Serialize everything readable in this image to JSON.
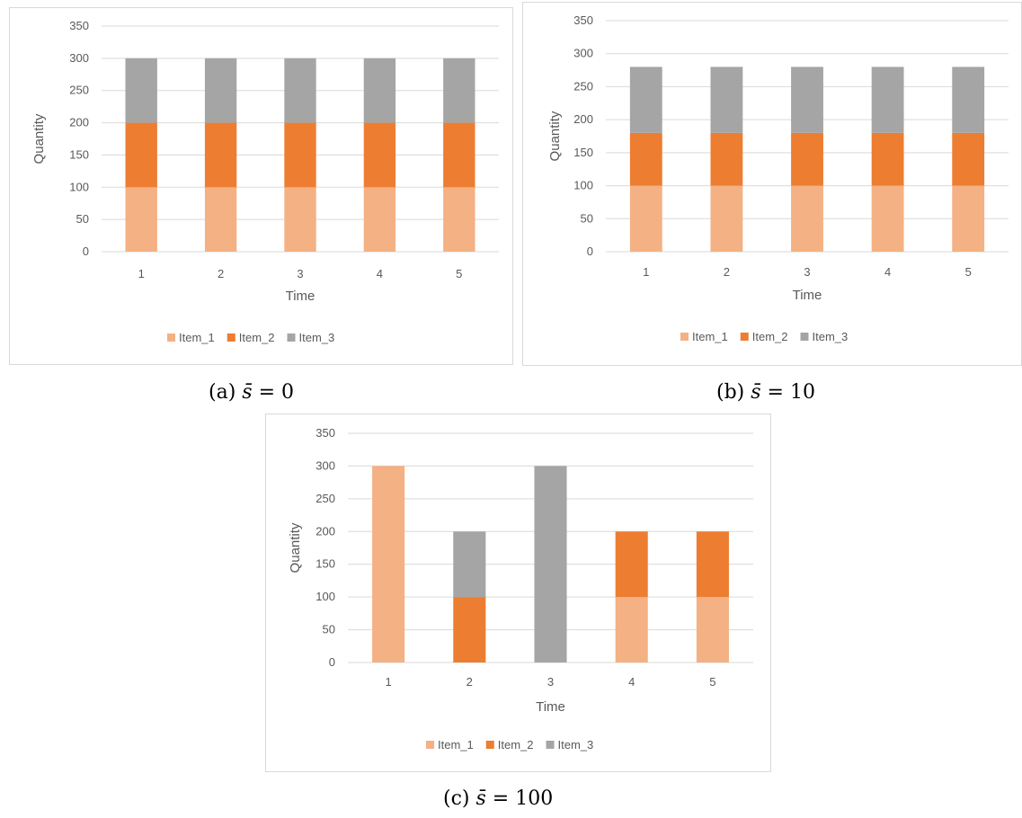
{
  "figure": {
    "panels": [
      {
        "caption_prefix": "(a)",
        "caption_symbol": "s̄",
        "caption_value": "= 0"
      },
      {
        "caption_prefix": "(b)",
        "caption_symbol": "s̄",
        "caption_value": "= 10"
      },
      {
        "caption_prefix": "(c)",
        "caption_symbol": "s̄",
        "caption_value": "= 100"
      }
    ]
  },
  "colors": {
    "Item_1": "#f4b183",
    "Item_2": "#ed7d31",
    "Item_3": "#a5a5a5",
    "grid": "#d9d9d9",
    "text": "#595959"
  },
  "chart_data": [
    {
      "type": "bar",
      "stacked": true,
      "categories": [
        "1",
        "2",
        "3",
        "4",
        "5"
      ],
      "series": [
        {
          "name": "Item_1",
          "values": [
            100,
            100,
            100,
            100,
            100
          ]
        },
        {
          "name": "Item_2",
          "values": [
            100,
            100,
            100,
            100,
            100
          ]
        },
        {
          "name": "Item_3",
          "values": [
            100,
            100,
            100,
            100,
            100
          ]
        }
      ],
      "xlabel": "Time",
      "ylabel": "Quantity",
      "ylim": [
        0,
        350
      ],
      "yticks": [
        0,
        50,
        100,
        150,
        200,
        250,
        300,
        350
      ],
      "grid": true,
      "legend": "bottom"
    },
    {
      "type": "bar",
      "stacked": true,
      "categories": [
        "1",
        "2",
        "3",
        "4",
        "5"
      ],
      "series": [
        {
          "name": "Item_1",
          "values": [
            100,
            100,
            100,
            100,
            100
          ]
        },
        {
          "name": "Item_2",
          "values": [
            80,
            80,
            80,
            80,
            80
          ]
        },
        {
          "name": "Item_3",
          "values": [
            100,
            100,
            100,
            100,
            100
          ]
        }
      ],
      "xlabel": "Time",
      "ylabel": "Quantity",
      "ylim": [
        0,
        350
      ],
      "yticks": [
        0,
        50,
        100,
        150,
        200,
        250,
        300,
        350
      ],
      "grid": true,
      "legend": "bottom"
    },
    {
      "type": "bar",
      "stacked": true,
      "categories": [
        "1",
        "2",
        "3",
        "4",
        "5"
      ],
      "series": [
        {
          "name": "Item_1",
          "values": [
            300,
            0,
            0,
            100,
            100
          ]
        },
        {
          "name": "Item_2",
          "values": [
            0,
            100,
            0,
            100,
            100
          ]
        },
        {
          "name": "Item_3",
          "values": [
            0,
            100,
            300,
            0,
            0
          ]
        }
      ],
      "xlabel": "Time",
      "ylabel": "Quantity",
      "ylim": [
        0,
        350
      ],
      "yticks": [
        0,
        50,
        100,
        150,
        200,
        250,
        300,
        350
      ],
      "grid": true,
      "legend": "bottom"
    }
  ]
}
